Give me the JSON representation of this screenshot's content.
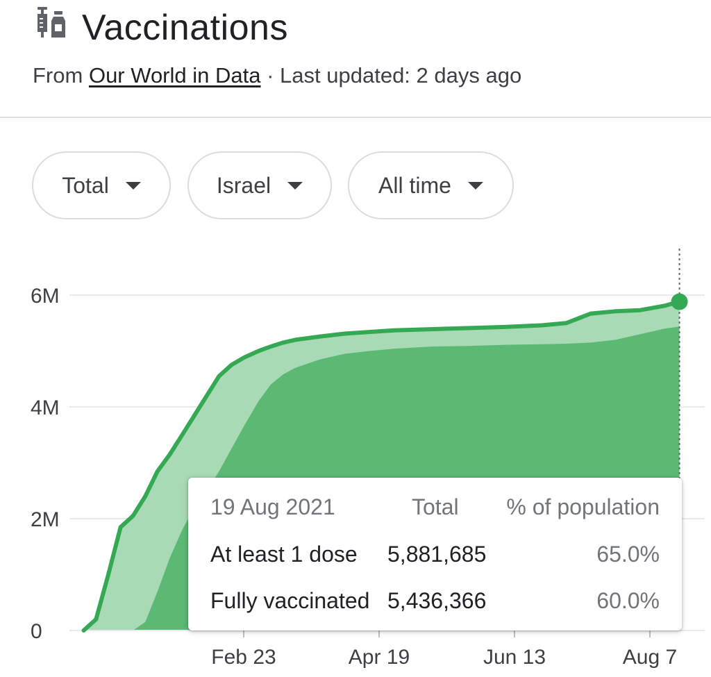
{
  "header": {
    "title": "Vaccinations",
    "source_prefix": "From",
    "source_name": "Our World in Data",
    "separator": "·",
    "updated": "Last updated: 2 days ago",
    "icon": "syringe-vial-icon"
  },
  "filters": [
    {
      "label": "Total",
      "icon": "caret-down-icon"
    },
    {
      "label": "Israel",
      "icon": "caret-down-icon"
    },
    {
      "label": "All time",
      "icon": "caret-down-icon"
    }
  ],
  "colors": {
    "line": "#34a853",
    "light_area": "#a8dab5",
    "dark_area": "#5bb974",
    "grid": "#e8eaed",
    "axis_text": "#3c4043"
  },
  "chart_data": {
    "type": "area",
    "x_ticks": [
      "Feb 23",
      "Apr 19",
      "Jun 13",
      "Aug 7"
    ],
    "y_ticks": [
      "0",
      "2M",
      "4M",
      "6M"
    ],
    "ylim": [
      0,
      6000000
    ],
    "grid": "horizontal",
    "x_dates": [
      "2020-12-20",
      "2020-12-25",
      "2020-12-30",
      "2021-01-04",
      "2021-01-09",
      "2021-01-14",
      "2021-01-19",
      "2021-01-24",
      "2021-01-29",
      "2021-02-03",
      "2021-02-08",
      "2021-02-13",
      "2021-02-18",
      "2021-02-23",
      "2021-03-01",
      "2021-03-06",
      "2021-03-11",
      "2021-03-16",
      "2021-03-26",
      "2021-04-05",
      "2021-04-15",
      "2021-04-25",
      "2021-05-10",
      "2021-05-25",
      "2021-06-09",
      "2021-06-24",
      "2021-07-04",
      "2021-07-14",
      "2021-07-24",
      "2021-08-03",
      "2021-08-13",
      "2021-08-19"
    ],
    "series": [
      {
        "name": "At least 1 dose",
        "values": [
          0,
          200000,
          1000000,
          1850000,
          2050000,
          2400000,
          2850000,
          3150000,
          3500000,
          3850000,
          4200000,
          4550000,
          4750000,
          4880000,
          5000000,
          5080000,
          5150000,
          5200000,
          5260000,
          5310000,
          5340000,
          5370000,
          5390000,
          5410000,
          5430000,
          5460000,
          5500000,
          5670000,
          5710000,
          5730000,
          5810000,
          5881685
        ]
      },
      {
        "name": "Fully vaccinated",
        "values": [
          0,
          0,
          0,
          0,
          0,
          150000,
          700000,
          1300000,
          1800000,
          2200000,
          2500000,
          2850000,
          3250000,
          3650000,
          4100000,
          4400000,
          4580000,
          4700000,
          4850000,
          4950000,
          5000000,
          5040000,
          5080000,
          5090000,
          5110000,
          5120000,
          5130000,
          5150000,
          5200000,
          5300000,
          5400000,
          5436366
        ]
      }
    ],
    "tooltip": {
      "date": "19 Aug 2021",
      "col_total": "Total",
      "col_pct": "% of population",
      "rows": [
        {
          "label": "At least 1 dose",
          "total": "5,881,685",
          "pct": "65.0%"
        },
        {
          "label": "Fully vaccinated",
          "total": "5,436,366",
          "pct": "60.0%"
        }
      ]
    }
  }
}
